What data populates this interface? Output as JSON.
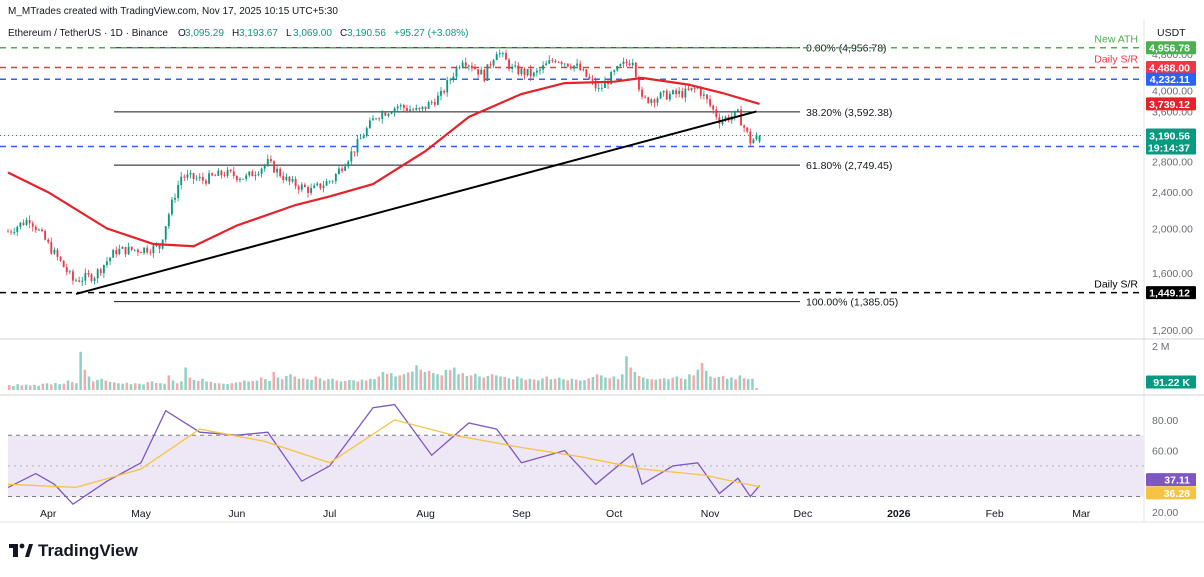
{
  "header": {
    "credit": "M_MTrades created with TradingView.com, Nov 17, 2025 10:15 UTC+5:30",
    "symbol": "Ethereum / TetherUS · 1D · Binance",
    "ohlc": [
      {
        "k": "O",
        "v": "3,095.29"
      },
      {
        "k": "H",
        "v": "3,193.67"
      },
      {
        "k": "L",
        "v": "3,069.00"
      },
      {
        "k": "C",
        "v": "3,190.56"
      }
    ],
    "change": "+95.27 (+3.08%)"
  },
  "currency_label": "USDT",
  "logo_text": "TradingView",
  "colors": {
    "up": "#089981",
    "down": "#f23645",
    "ma": "#e5212a",
    "trend": "#000000",
    "green_level": "#4caf50",
    "red_level": "#f23645",
    "blue_level": "#2962ff",
    "rsi": "#7e57c2",
    "rsi_ma": "#f7c342",
    "rsi_band": "#ede7f6"
  },
  "chart_data": [
    {
      "type": "candlestick",
      "title": "Ethereum / TetherUS · 1D · Binance",
      "x_axis_labels": [
        "Apr",
        "May",
        "Jun",
        "Jul",
        "Aug",
        "Sep",
        "Oct",
        "Nov",
        "Dec",
        "2026",
        "Feb",
        "Mar"
      ],
      "x_range": [
        "2025-03-19",
        "2026-03-20"
      ],
      "ylim": [
        1160,
        5000
      ],
      "y_scale": "log",
      "y_ticks": [
        "4,800.00",
        "4,400.00",
        "4,000.00",
        "3,600.00",
        "2,800.00",
        "2,400.00",
        "2,000.00",
        "1,600.00",
        "1,200.00"
      ],
      "weekly_closes": [
        {
          "date": "2025-03-19",
          "close": 1970
        },
        {
          "date": "2025-03-26",
          "close": 2100
        },
        {
          "date": "2025-04-02",
          "close": 1800
        },
        {
          "date": "2025-04-09",
          "close": 1540
        },
        {
          "date": "2025-04-16",
          "close": 1580
        },
        {
          "date": "2025-04-23",
          "close": 1790
        },
        {
          "date": "2025-04-30",
          "close": 1800
        },
        {
          "date": "2025-05-07",
          "close": 1820
        },
        {
          "date": "2025-05-14",
          "close": 2600
        },
        {
          "date": "2025-05-21",
          "close": 2550
        },
        {
          "date": "2025-05-28",
          "close": 2640
        },
        {
          "date": "2025-06-04",
          "close": 2580
        },
        {
          "date": "2025-06-11",
          "close": 2780
        },
        {
          "date": "2025-06-18",
          "close": 2520
        },
        {
          "date": "2025-06-25",
          "close": 2420
        },
        {
          "date": "2025-07-02",
          "close": 2560
        },
        {
          "date": "2025-07-09",
          "close": 2980
        },
        {
          "date": "2025-07-16",
          "close": 3520
        },
        {
          "date": "2025-07-23",
          "close": 3700
        },
        {
          "date": "2025-07-30",
          "close": 3600
        },
        {
          "date": "2025-08-06",
          "close": 3900
        },
        {
          "date": "2025-08-13",
          "close": 4700
        },
        {
          "date": "2025-08-20",
          "close": 4300
        },
        {
          "date": "2025-08-24",
          "close": 4900
        },
        {
          "date": "2025-08-29",
          "close": 4450
        },
        {
          "date": "2025-09-05",
          "close": 4320
        },
        {
          "date": "2025-09-12",
          "close": 4700
        },
        {
          "date": "2025-09-19",
          "close": 4500
        },
        {
          "date": "2025-09-26",
          "close": 4000
        },
        {
          "date": "2025-10-03",
          "close": 4500
        },
        {
          "date": "2025-10-07",
          "close": 4680
        },
        {
          "date": "2025-10-10",
          "close": 3800
        },
        {
          "date": "2025-10-17",
          "close": 3900
        },
        {
          "date": "2025-10-24",
          "close": 3950
        },
        {
          "date": "2025-10-28",
          "close": 4050
        },
        {
          "date": "2025-11-04",
          "close": 3450
        },
        {
          "date": "2025-11-10",
          "close": 3550
        },
        {
          "date": "2025-11-14",
          "close": 3100
        },
        {
          "date": "2025-11-17",
          "close": 3190.56
        }
      ],
      "moving_average": [
        {
          "date": "2025-03-19",
          "value": 2650
        },
        {
          "date": "2025-04-01",
          "value": 2400
        },
        {
          "date": "2025-04-20",
          "value": 2000
        },
        {
          "date": "2025-05-05",
          "value": 1850
        },
        {
          "date": "2025-05-18",
          "value": 1830
        },
        {
          "date": "2025-06-01",
          "value": 2030
        },
        {
          "date": "2025-06-20",
          "value": 2250
        },
        {
          "date": "2025-07-01",
          "value": 2350
        },
        {
          "date": "2025-07-15",
          "value": 2500
        },
        {
          "date": "2025-08-01",
          "value": 2950
        },
        {
          "date": "2025-08-15",
          "value": 3500
        },
        {
          "date": "2025-09-01",
          "value": 3930
        },
        {
          "date": "2025-09-15",
          "value": 4150
        },
        {
          "date": "2025-10-01",
          "value": 4180
        },
        {
          "date": "2025-10-10",
          "value": 4260
        },
        {
          "date": "2025-10-25",
          "value": 4120
        },
        {
          "date": "2025-11-05",
          "value": 3950
        },
        {
          "date": "2025-11-17",
          "value": 3739.12
        }
      ],
      "trendline": [
        {
          "date": "2025-04-10",
          "value": 1440
        },
        {
          "date": "2025-11-16",
          "value": 3600
        }
      ],
      "fibonacci": [
        {
          "label": "0.00% (4,956.78)",
          "value": 4956.78
        },
        {
          "label": "38.20% (3,592.38)",
          "value": 3592.38
        },
        {
          "label": "61.80% (2,749.45)",
          "value": 2749.45
        },
        {
          "label": "100.00% (1,385.05)",
          "value": 1385.05
        }
      ],
      "levels": [
        {
          "annotation": "New ATH",
          "value": 4956.78,
          "tag": "4,956.78",
          "color": "#4caf50"
        },
        {
          "annotation": "Daily S/R",
          "value": 4488.0,
          "tag": "4,488.00",
          "color": "#f23645"
        },
        {
          "annotation": "",
          "value": 4232.11,
          "tag": "4,232.11",
          "color": "#2962ff"
        },
        {
          "annotation": "",
          "value": 3017.95,
          "tag": "3,017.95",
          "color": "#2962ff"
        },
        {
          "annotation": "Daily S/R",
          "value": 1449.12,
          "tag": "1,449.12",
          "color": "#000000"
        }
      ],
      "current_price": {
        "value": 3190.56,
        "tag": "3,190.56",
        "countdown": "19:14:37"
      },
      "ma_tag": {
        "value": 3739.12,
        "tag": "3,739.12"
      }
    },
    {
      "type": "bar",
      "title": "Volume",
      "ylim": [
        0,
        2000000
      ],
      "y_ticks": [
        "2 M"
      ],
      "last_value": "91.22 K",
      "value_unit": "thousands",
      "values": [
        220,
        180,
        260,
        210,
        240,
        200,
        230,
        190,
        280,
        300,
        250,
        310,
        260,
        280,
        420,
        350,
        300,
        1700,
        900,
        600,
        380,
        450,
        500,
        420,
        360,
        340,
        300,
        280,
        320,
        260,
        300,
        280,
        250,
        350,
        380,
        310,
        300,
        280,
        650,
        420,
        300,
        380,
        1000,
        550,
        450,
        400,
        500,
        380,
        360,
        300,
        300,
        280,
        260,
        300,
        330,
        350,
        420,
        380,
        400,
        420,
        550,
        480,
        400,
        800,
        560,
        480,
        620,
        700,
        600,
        500,
        520,
        480,
        450,
        600,
        520,
        420,
        480,
        500,
        420,
        380,
        400,
        440,
        430,
        380,
        460,
        420,
        500,
        480,
        600,
        800,
        720,
        750,
        600,
        650,
        700,
        780,
        820,
        1100,
        900,
        800,
        850,
        750,
        700,
        650,
        900,
        880,
        1000,
        700,
        750,
        620,
        650,
        720,
        600,
        550,
        620,
        700,
        650,
        600,
        580,
        520,
        480,
        600,
        520,
        450,
        500,
        470,
        430,
        520,
        600,
        480,
        500,
        550,
        480,
        430,
        500,
        460,
        420,
        440,
        520,
        580,
        700,
        650,
        560,
        520,
        600,
        480,
        700,
        1500,
        1000,
        800,
        620,
        560,
        500,
        480,
        460,
        500,
        520,
        480,
        550,
        600,
        520,
        480,
        700,
        650,
        900,
        1200,
        850,
        600,
        540,
        580,
        620,
        500,
        560,
        480,
        650,
        520,
        480,
        500,
        91.22
      ]
    },
    {
      "type": "line",
      "title": "RSI",
      "ylim": [
        16,
        93
      ],
      "y_ticks": [
        "80.00",
        "60.00",
        "20.00"
      ],
      "band": [
        30,
        70
      ],
      "series": [
        {
          "label": "37.11",
          "color": "#7e57c2",
          "points": [
            {
              "date": "2025-03-19",
              "value": 36
            },
            {
              "date": "2025-03-28",
              "value": 45
            },
            {
              "date": "2025-04-03",
              "value": 38
            },
            {
              "date": "2025-04-09",
              "value": 25
            },
            {
              "date": "2025-04-20",
              "value": 40
            },
            {
              "date": "2025-05-01",
              "value": 52
            },
            {
              "date": "2025-05-09",
              "value": 86
            },
            {
              "date": "2025-05-20",
              "value": 72
            },
            {
              "date": "2025-06-01",
              "value": 70
            },
            {
              "date": "2025-06-11",
              "value": 72
            },
            {
              "date": "2025-06-22",
              "value": 40
            },
            {
              "date": "2025-07-01",
              "value": 50
            },
            {
              "date": "2025-07-15",
              "value": 88
            },
            {
              "date": "2025-07-22",
              "value": 90
            },
            {
              "date": "2025-08-03",
              "value": 57
            },
            {
              "date": "2025-08-15",
              "value": 78
            },
            {
              "date": "2025-08-24",
              "value": 74
            },
            {
              "date": "2025-09-01",
              "value": 52
            },
            {
              "date": "2025-09-15",
              "value": 60
            },
            {
              "date": "2025-09-25",
              "value": 38
            },
            {
              "date": "2025-10-07",
              "value": 58
            },
            {
              "date": "2025-10-10",
              "value": 38
            },
            {
              "date": "2025-10-20",
              "value": 50
            },
            {
              "date": "2025-10-28",
              "value": 52
            },
            {
              "date": "2025-11-04",
              "value": 32
            },
            {
              "date": "2025-11-10",
              "value": 42
            },
            {
              "date": "2025-11-14",
              "value": 30
            },
            {
              "date": "2025-11-17",
              "value": 37.11
            }
          ]
        },
        {
          "label": "36.28",
          "color": "#f7c342",
          "points": [
            {
              "date": "2025-03-19",
              "value": 38
            },
            {
              "date": "2025-04-10",
              "value": 36
            },
            {
              "date": "2025-05-01",
              "value": 48
            },
            {
              "date": "2025-05-20",
              "value": 74
            },
            {
              "date": "2025-06-10",
              "value": 66
            },
            {
              "date": "2025-07-01",
              "value": 52
            },
            {
              "date": "2025-07-22",
              "value": 80
            },
            {
              "date": "2025-08-10",
              "value": 70
            },
            {
              "date": "2025-09-01",
              "value": 62
            },
            {
              "date": "2025-09-20",
              "value": 56
            },
            {
              "date": "2025-10-10",
              "value": 48
            },
            {
              "date": "2025-10-30",
              "value": 44
            },
            {
              "date": "2025-11-17",
              "value": 36.28
            }
          ]
        }
      ]
    }
  ]
}
